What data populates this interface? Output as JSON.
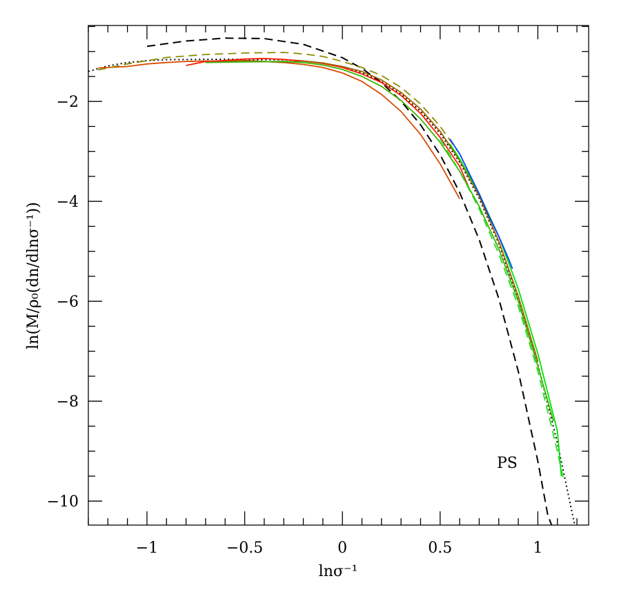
{
  "chart_data": {
    "type": "line",
    "title": "",
    "xlabel": "lnσ⁻¹",
    "ylabel": "ln(M/ρ₀(dn/dlnσ⁻¹))",
    "xlim": [
      -1.3,
      1.26
    ],
    "ylim": [
      -10.48,
      -0.48
    ],
    "grid": false,
    "x_ticks": [
      -1,
      -0.5,
      0,
      0.5,
      1
    ],
    "x_tick_labels": [
      "−1",
      "−0.5",
      "0",
      "0.5",
      "1"
    ],
    "y_ticks": [
      -2,
      -4,
      -6,
      -8,
      -10
    ],
    "y_tick_labels": [
      "−2",
      "−4",
      "−6",
      "−8",
      "−10"
    ],
    "annotations": [
      {
        "text": "PS",
        "x": 0.92,
        "y": -9.25
      }
    ],
    "series": [
      {
        "style": "dashed",
        "color": "#000000",
        "points": [
          [
            -1,
            -0.896
          ],
          [
            -0.8,
            -0.79
          ],
          [
            -0.6,
            -0.732
          ],
          [
            -0.4,
            -0.742
          ],
          [
            -0.2,
            -0.856
          ],
          [
            0,
            -1.125
          ],
          [
            0.1,
            -1.339
          ],
          [
            0.2,
            -1.624
          ],
          [
            0.3,
            -1.993
          ],
          [
            0.4,
            -2.467
          ],
          [
            0.5,
            -3.067
          ],
          [
            0.6,
            -3.822
          ],
          [
            0.7,
            -4.767
          ],
          [
            0.8,
            -5.943
          ],
          [
            0.9,
            -7.402
          ],
          [
            1.0,
            -9.205
          ],
          [
            1.05,
            -10.26
          ],
          [
            1.07,
            -10.48
          ]
        ]
      },
      {
        "style": "dotted",
        "color": "#000000",
        "points": [
          [
            -1.3,
            -1.399
          ],
          [
            -1.2,
            -1.29
          ],
          [
            -1.1,
            -1.22
          ],
          [
            -1.0,
            -1.183
          ],
          [
            -0.9,
            -1.164
          ],
          [
            -0.6,
            -1.155
          ],
          [
            -0.3,
            -1.167
          ],
          [
            -0.2,
            -1.189
          ],
          [
            -0.1,
            -1.233
          ],
          [
            0,
            -1.308
          ],
          [
            0.1,
            -1.427
          ],
          [
            0.2,
            -1.604
          ],
          [
            0.3,
            -1.854
          ],
          [
            0.4,
            -2.193
          ],
          [
            0.5,
            -2.642
          ],
          [
            0.6,
            -3.219
          ],
          [
            0.7,
            -3.945
          ],
          [
            0.8,
            -4.845
          ],
          [
            0.9,
            -5.942
          ],
          [
            1.0,
            -7.263
          ],
          [
            1.1,
            -8.835
          ],
          [
            1.2,
            -10.69
          ]
        ]
      },
      {
        "style": "solid",
        "color": "#d84a00",
        "points": [
          [
            -1.25,
            -1.33
          ],
          [
            -1.1,
            -1.3
          ],
          [
            -1.0,
            -1.25
          ],
          [
            -0.9,
            -1.22
          ],
          [
            -0.8,
            -1.2
          ],
          [
            -0.7,
            -1.19
          ],
          [
            -0.6,
            -1.2
          ],
          [
            -0.5,
            -1.18
          ],
          [
            -0.4,
            -1.2
          ],
          [
            -0.3,
            -1.22
          ],
          [
            -0.2,
            -1.26
          ],
          [
            -0.1,
            -1.32
          ],
          [
            0,
            -1.43
          ],
          [
            0.1,
            -1.6
          ],
          [
            0.2,
            -1.86
          ],
          [
            0.3,
            -2.2
          ],
          [
            0.4,
            -2.66
          ],
          [
            0.5,
            -3.25
          ],
          [
            0.6,
            -3.95
          ]
        ]
      },
      {
        "style": "solid",
        "color": "#ff1a00",
        "points": [
          [
            -0.8,
            -1.28
          ],
          [
            -0.7,
            -1.2
          ],
          [
            -0.6,
            -1.18
          ],
          [
            -0.5,
            -1.15
          ],
          [
            -0.4,
            -1.14
          ],
          [
            -0.3,
            -1.16
          ],
          [
            -0.2,
            -1.19
          ],
          [
            -0.1,
            -1.24
          ],
          [
            0,
            -1.32
          ],
          [
            0.1,
            -1.45
          ],
          [
            0.2,
            -1.62
          ],
          [
            0.3,
            -1.88
          ],
          [
            0.4,
            -2.24
          ],
          [
            0.5,
            -2.72
          ],
          [
            0.6,
            -3.3
          ],
          [
            0.65,
            -3.75
          ]
        ]
      },
      {
        "style": "solid",
        "color": "#a06000",
        "points": [
          [
            -0.6,
            -1.2
          ],
          [
            -0.5,
            -1.18
          ],
          [
            -0.4,
            -1.2
          ],
          [
            -0.3,
            -1.22
          ],
          [
            -0.2,
            -1.19
          ],
          [
            -0.1,
            -1.23
          ],
          [
            0,
            -1.3
          ],
          [
            0.1,
            -1.4
          ],
          [
            0.2,
            -1.57
          ],
          [
            0.3,
            -1.82
          ],
          [
            0.4,
            -2.15
          ],
          [
            0.5,
            -2.6
          ],
          [
            0.6,
            -3.18
          ],
          [
            0.7,
            -3.9
          ],
          [
            0.8,
            -4.8
          ],
          [
            0.9,
            -5.9
          ],
          [
            1.0,
            -7.2
          ]
        ]
      },
      {
        "style": "dashed",
        "color": "#8c8c00",
        "points": [
          [
            -1.25,
            -1.37
          ],
          [
            -1.1,
            -1.25
          ],
          [
            -0.9,
            -1.12
          ],
          [
            -0.7,
            -1.06
          ],
          [
            -0.5,
            -1.03
          ],
          [
            -0.3,
            -1.02
          ],
          [
            -0.2,
            -1.05
          ],
          [
            -0.1,
            -1.1
          ],
          [
            0,
            -1.2
          ],
          [
            0.1,
            -1.32
          ],
          [
            0.2,
            -1.48
          ],
          [
            0.3,
            -1.72
          ],
          [
            0.4,
            -2.05
          ],
          [
            0.5,
            -2.5
          ],
          [
            0.6,
            -3.05
          ]
        ]
      },
      {
        "style": "solid",
        "color": "#3cb400",
        "points": [
          [
            -0.7,
            -1.22
          ],
          [
            -0.5,
            -1.21
          ],
          [
            -0.3,
            -1.2
          ],
          [
            -0.2,
            -1.22
          ],
          [
            -0.1,
            -1.27
          ],
          [
            0,
            -1.36
          ],
          [
            0.1,
            -1.5
          ],
          [
            0.2,
            -1.7
          ],
          [
            0.3,
            -1.98
          ],
          [
            0.4,
            -2.35
          ],
          [
            0.5,
            -2.82
          ],
          [
            0.6,
            -3.4
          ],
          [
            0.7,
            -4.1
          ],
          [
            0.8,
            -4.95
          ],
          [
            0.9,
            -6.0
          ],
          [
            1.0,
            -7.3
          ],
          [
            1.08,
            -8.4
          ]
        ]
      },
      {
        "style": "solid",
        "color": "#00e000",
        "points": [
          [
            0.55,
            -2.85
          ],
          [
            0.6,
            -3.15
          ],
          [
            0.7,
            -3.85
          ],
          [
            0.8,
            -4.7
          ],
          [
            0.9,
            -5.75
          ],
          [
            1.0,
            -7.05
          ],
          [
            1.1,
            -8.6
          ],
          [
            1.12,
            -9.5
          ]
        ]
      },
      {
        "style": "dashed",
        "color": "#22dd22",
        "points": [
          [
            0.5,
            -2.75
          ],
          [
            0.6,
            -3.4
          ],
          [
            0.7,
            -4.15
          ],
          [
            0.8,
            -5.05
          ],
          [
            0.9,
            -6.1
          ],
          [
            1.0,
            -7.4
          ],
          [
            1.1,
            -9.0
          ],
          [
            1.13,
            -9.55
          ]
        ]
      },
      {
        "style": "solid",
        "color": "#0040ff",
        "points": [
          [
            0.55,
            -2.75
          ],
          [
            0.6,
            -3.05
          ],
          [
            0.65,
            -3.45
          ],
          [
            0.7,
            -3.85
          ],
          [
            0.75,
            -4.3
          ],
          [
            0.8,
            -4.7
          ],
          [
            0.85,
            -5.15
          ],
          [
            0.87,
            -5.35
          ]
        ]
      }
    ]
  }
}
